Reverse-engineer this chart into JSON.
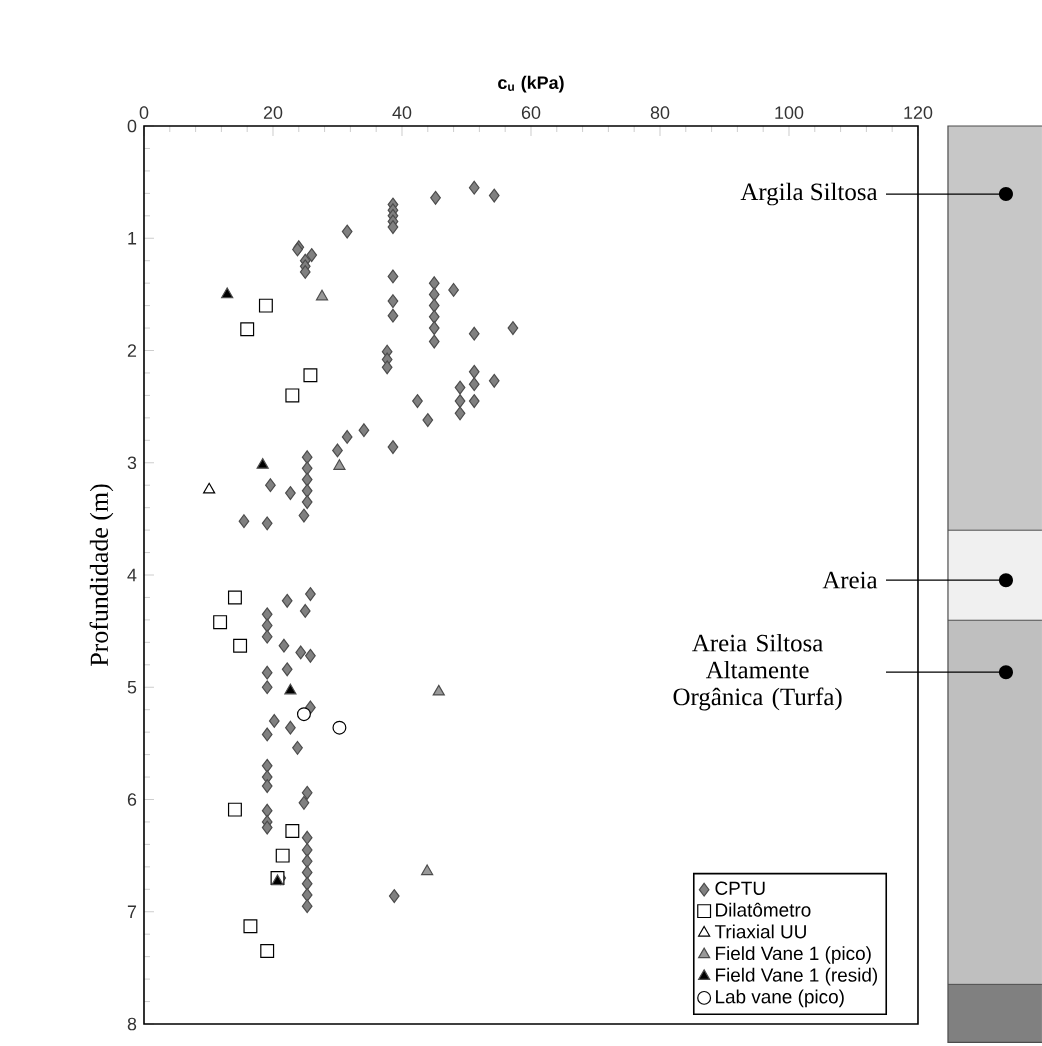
{
  "chart_data": {
    "type": "scatter",
    "xlabel": "c$_{u}$ (kPa)",
    "ylabel": "Profundidade (m)",
    "xlim": [
      0,
      120
    ],
    "xticks": [
      0,
      20,
      40,
      60,
      80,
      100,
      120
    ],
    "ylim": [
      8,
      0
    ],
    "yticks": [
      0,
      1,
      2,
      3,
      4,
      5,
      6,
      7,
      8
    ],
    "legend": "bottom right",
    "grid": false,
    "annotations": [
      "Argila Siltosa",
      "Areia",
      "Areia Siltosa Altamente Orgânica (Turfa)"
    ],
    "series": [
      {
        "name": "CPTU",
        "color": "#808080",
        "marker": "diamond",
        "x": [
          51.2,
          54.3,
          45.2,
          38.6,
          38.6,
          38.6,
          38.6,
          38.6,
          31.5,
          24,
          26,
          25,
          25,
          25,
          23.8,
          38.6,
          38.6,
          38.6,
          45,
          45,
          45,
          45,
          45,
          45,
          48,
          51.2,
          57.2,
          37.7,
          37.7,
          37.7,
          51.2,
          51.2,
          51.2,
          54.3,
          49,
          49,
          49,
          42.4,
          44,
          38.6,
          34.1,
          31.5,
          30,
          25.3,
          25.3,
          25.3,
          25.3,
          25.3,
          19.6,
          22.7,
          15.5,
          19.1,
          24.8,
          25.8,
          22.2,
          25,
          19.1,
          19.1,
          19.1,
          21.7,
          24.3,
          25.8,
          19.1,
          19.1,
          22.2,
          25.8,
          20.2,
          22.7,
          19.1,
          23.8,
          19.1,
          19.1,
          19.1,
          25.3,
          24.8,
          19.1,
          19.1,
          19.1,
          25.3,
          25.3,
          25.3,
          25.3,
          25.3,
          25.3,
          25.3,
          21.2,
          38.8
        ],
        "values": [
          0.55,
          0.62,
          0.64,
          0.7,
          0.75,
          0.8,
          0.85,
          0.9,
          0.94,
          1.08,
          1.15,
          1.2,
          1.25,
          1.3,
          1.1,
          1.34,
          1.56,
          1.69,
          1.4,
          1.5,
          1.6,
          1.7,
          1.8,
          1.92,
          1.46,
          1.85,
          1.8,
          2.01,
          2.08,
          2.15,
          2.19,
          2.3,
          2.45,
          2.27,
          2.33,
          2.45,
          2.56,
          2.45,
          2.62,
          2.86,
          2.71,
          2.77,
          2.89,
          2.95,
          3.05,
          3.15,
          3.25,
          3.35,
          3.2,
          3.27,
          3.52,
          3.54,
          3.47,
          4.17,
          4.23,
          4.32,
          4.35,
          4.45,
          4.55,
          4.63,
          4.69,
          4.72,
          4.87,
          5.0,
          4.84,
          5.18,
          5.3,
          5.36,
          5.42,
          5.54,
          5.7,
          5.8,
          5.88,
          5.94,
          6.03,
          6.1,
          6.2,
          6.25,
          6.34,
          6.45,
          6.55,
          6.65,
          6.75,
          6.85,
          6.95,
          6.7,
          6.86
        ]
      },
      {
        "name": "Dilatômetro",
        "color": "#ffffff",
        "marker": "square",
        "x": [
          18.9,
          16,
          25.8,
          23,
          14.1,
          11.8,
          14.9,
          14.1,
          23,
          21.5,
          20.7,
          16.5,
          19.1
        ],
        "values": [
          1.6,
          1.81,
          2.22,
          2.4,
          4.2,
          4.42,
          4.63,
          6.09,
          6.28,
          6.5,
          6.7,
          7.13,
          7.35
        ]
      },
      {
        "name": "Triaxial UU",
        "color": "#ffffff",
        "marker": "triangle",
        "x": [
          10.1
        ],
        "values": [
          3.24
        ]
      },
      {
        "name": "Field Vane 1 (pico)",
        "color": "#999999",
        "marker": "triangle",
        "x": [
          27.6,
          30.3,
          45.7,
          43.9
        ],
        "values": [
          1.52,
          3.03,
          5.04,
          6.64
        ]
      },
      {
        "name": "Field Vane 1 (resid)",
        "color": "#000000",
        "marker": "triangle",
        "x": [
          12.9,
          18.4,
          22.7,
          20.7
        ],
        "values": [
          1.5,
          3.02,
          5.03,
          6.73
        ]
      },
      {
        "name": "Lab vane (pico)",
        "color": "#ffffff",
        "marker": "circle",
        "x": [
          24.8,
          30.3
        ],
        "values": [
          5.24,
          5.36
        ]
      }
    ]
  }
}
